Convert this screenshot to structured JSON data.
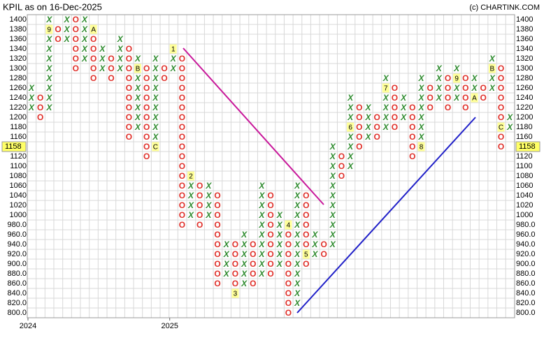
{
  "header": {
    "title": "KPIL as on 16-Dec-2025",
    "credit": "(c) CHARTINK.COM"
  },
  "chart_data": {
    "type": "point_and_figure",
    "box_size": 20,
    "ylim": [
      800,
      1400
    ],
    "yticks": [
      1400,
      1380,
      1360,
      1340,
      1320,
      1300,
      1280,
      1260,
      1240,
      1220,
      1200,
      1180,
      1160,
      1140,
      1120,
      1100,
      1080,
      1060,
      1040,
      1020,
      1000,
      {
        "value": 980,
        "label": "980.0"
      },
      {
        "value": 960,
        "label": "960.0"
      },
      {
        "value": 940,
        "label": "940.0"
      },
      {
        "value": 920,
        "label": "920.0"
      },
      {
        "value": 900,
        "label": "900.0"
      },
      {
        "value": 880,
        "label": "880.0"
      },
      {
        "value": 860,
        "label": "860.0"
      },
      {
        "value": 840,
        "label": "840.0"
      },
      {
        "value": 820,
        "label": "820.0"
      },
      {
        "value": 800,
        "label": "800.0"
      }
    ],
    "symbols": {
      "X": {
        "label": "X",
        "color": "#2e8b2e"
      },
      "O": {
        "label": "O",
        "color": "#e0302a"
      }
    },
    "columns": [
      {
        "type": "X",
        "from": 1220,
        "to": 1260
      },
      {
        "type": "O",
        "from": 1200,
        "to": 1240
      },
      {
        "type": "X",
        "from": 1220,
        "to": 1400,
        "marker": {
          "value": 1380,
          "label": "9"
        }
      },
      {
        "type": "O",
        "from": 1360,
        "to": 1380
      },
      {
        "type": "X",
        "from": 1360,
        "to": 1400
      },
      {
        "type": "O",
        "from": 1300,
        "to": 1400
      },
      {
        "type": "X",
        "from": 1320,
        "to": 1400
      },
      {
        "type": "O",
        "from": 1280,
        "to": 1380,
        "marker": {
          "value": 1380,
          "label": "A"
        }
      },
      {
        "type": "X",
        "from": 1300,
        "to": 1340
      },
      {
        "type": "O",
        "from": 1280,
        "to": 1320
      },
      {
        "type": "X",
        "from": 1300,
        "to": 1360
      },
      {
        "type": "O",
        "from": 1160,
        "to": 1340
      },
      {
        "type": "X",
        "from": 1180,
        "to": 1320,
        "marker": {
          "value": 1300,
          "label": "B"
        }
      },
      {
        "type": "O",
        "from": 1120,
        "to": 1300
      },
      {
        "type": "X",
        "from": 1140,
        "to": 1320,
        "marker": {
          "value": 1140,
          "label": "C"
        }
      },
      {
        "type": "O",
        "from": 1280,
        "to": 1300
      },
      {
        "type": "X",
        "from": 1300,
        "to": 1340,
        "marker": {
          "value": 1340,
          "label": "1"
        }
      },
      {
        "type": "O",
        "from": 980,
        "to": 1320
      },
      {
        "type": "X",
        "from": 1000,
        "to": 1080,
        "marker": {
          "value": 1080,
          "label": "2"
        }
      },
      {
        "type": "O",
        "from": 980,
        "to": 1060
      },
      {
        "type": "X",
        "from": 1000,
        "to": 1060
      },
      {
        "type": "O",
        "from": 860,
        "to": 1040
      },
      {
        "type": "X",
        "from": 880,
        "to": 940
      },
      {
        "type": "O",
        "from": 840,
        "to": 940,
        "marker": {
          "value": 840,
          "label": "3"
        }
      },
      {
        "type": "X",
        "from": 860,
        "to": 960
      },
      {
        "type": "O",
        "from": 860,
        "to": 940
      },
      {
        "type": "X",
        "from": 880,
        "to": 1060
      },
      {
        "type": "O",
        "from": 880,
        "to": 1040
      },
      {
        "type": "X",
        "from": 900,
        "to": 1000
      },
      {
        "type": "O",
        "from": 800,
        "to": 980,
        "marker": {
          "value": 980,
          "label": "4"
        }
      },
      {
        "type": "X",
        "from": 820,
        "to": 1060
      },
      {
        "type": "O",
        "from": 900,
        "to": 1040,
        "marker": {
          "value": 920,
          "label": "5"
        }
      },
      {
        "type": "X",
        "from": 920,
        "to": 960
      },
      {
        "type": "O",
        "from": 920,
        "to": 940
      },
      {
        "type": "X",
        "from": 940,
        "to": 1140
      },
      {
        "type": "O",
        "from": 1080,
        "to": 1120
      },
      {
        "type": "X",
        "from": 1100,
        "to": 1240,
        "marker": {
          "value": 1180,
          "label": "6"
        }
      },
      {
        "type": "O",
        "from": 1140,
        "to": 1220
      },
      {
        "type": "X",
        "from": 1160,
        "to": 1220
      },
      {
        "type": "O",
        "from": 1160,
        "to": 1200
      },
      {
        "type": "X",
        "from": 1180,
        "to": 1280,
        "marker": {
          "value": 1260,
          "label": "7"
        }
      },
      {
        "type": "O",
        "from": 1180,
        "to": 1260
      },
      {
        "type": "X",
        "from": 1200,
        "to": 1240
      },
      {
        "type": "O",
        "from": 1120,
        "to": 1220
      },
      {
        "type": "X",
        "from": 1140,
        "to": 1280,
        "marker": {
          "value": 1140,
          "label": "8"
        }
      },
      {
        "type": "O",
        "from": 1220,
        "to": 1260
      },
      {
        "type": "X",
        "from": 1240,
        "to": 1300
      },
      {
        "type": "O",
        "from": 1220,
        "to": 1280
      },
      {
        "type": "X",
        "from": 1240,
        "to": 1300,
        "marker": {
          "value": 1280,
          "label": "9"
        }
      },
      {
        "type": "O",
        "from": 1220,
        "to": 1280
      },
      {
        "type": "X",
        "from": 1240,
        "to": 1280,
        "marker": {
          "value": 1240,
          "label": "A"
        }
      },
      {
        "type": "O",
        "from": 1240,
        "to": 1260
      },
      {
        "type": "X",
        "from": 1260,
        "to": 1320,
        "marker": {
          "value": 1300,
          "label": "B"
        }
      },
      {
        "type": "O",
        "from": 1140,
        "to": 1300,
        "marker": {
          "value": 1180,
          "label": "C"
        }
      },
      {
        "type": "X",
        "from": 1180,
        "to": 1200
      }
    ],
    "last_price": {
      "value": 1158,
      "label": "1158"
    },
    "year_marks": [
      {
        "column": 0,
        "label": "2024"
      },
      {
        "column": 16,
        "label": "2025"
      }
    ]
  }
}
